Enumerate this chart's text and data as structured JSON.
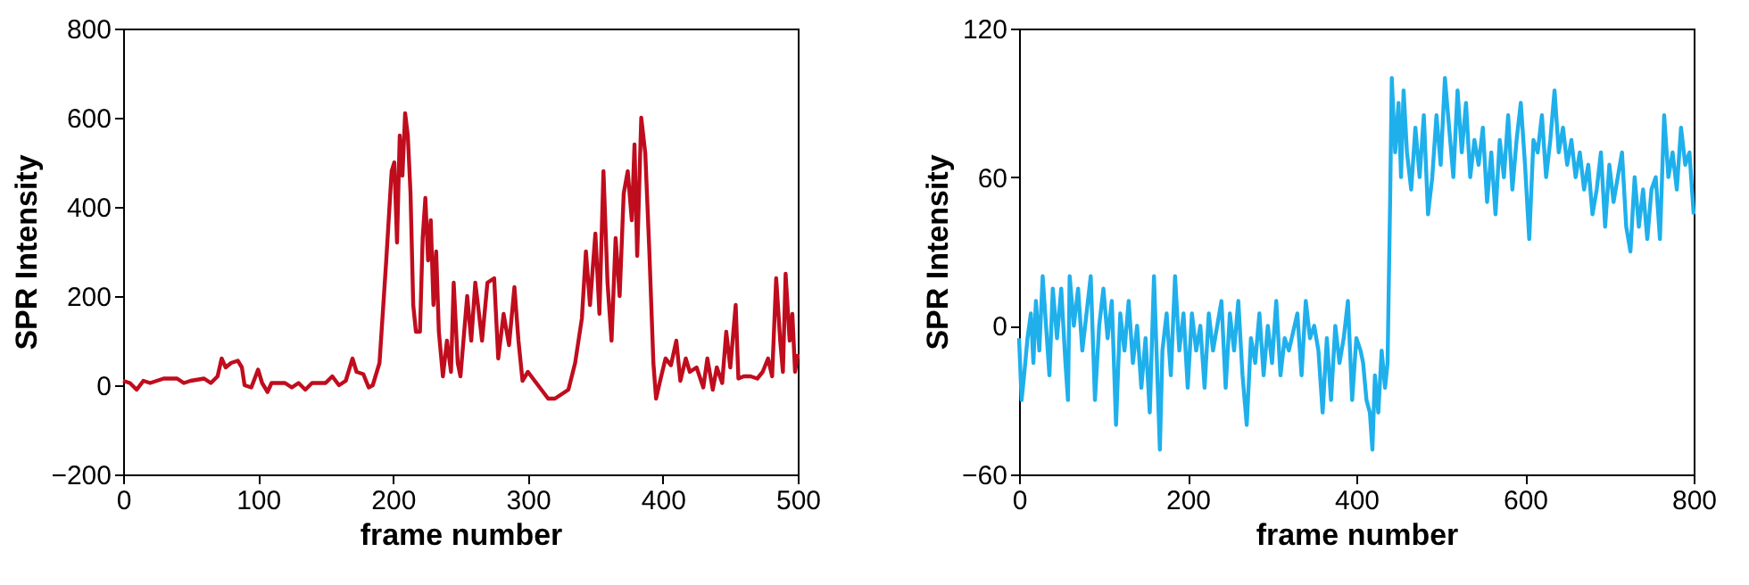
{
  "chart_data": [
    {
      "type": "line",
      "xlabel": "frame number",
      "ylabel": "SPR Intensity",
      "xlim": [
        0,
        500
      ],
      "xticks": [
        0,
        100,
        200,
        300,
        400,
        500
      ],
      "ylim": [
        -200,
        800
      ],
      "yticks": [
        -200,
        0,
        200,
        400,
        600,
        800
      ],
      "grid": false,
      "marker": "none",
      "line_style": "solid",
      "series": [
        {
          "color": "#c00d1e",
          "x": [
            0,
            5,
            10,
            15,
            20,
            30,
            40,
            45,
            50,
            60,
            65,
            70,
            73,
            76,
            80,
            85,
            88,
            90,
            95,
            100,
            103,
            107,
            110,
            120,
            125,
            130,
            135,
            140,
            150,
            155,
            160,
            165,
            170,
            173,
            178,
            182,
            185,
            190,
            195,
            199,
            201,
            203,
            205,
            207,
            209,
            211,
            213,
            215,
            217,
            220,
            222,
            224,
            226,
            228,
            230,
            232,
            234,
            237,
            240,
            243,
            245,
            248,
            250,
            255,
            258,
            261,
            263,
            266,
            270,
            275,
            278,
            282,
            286,
            290,
            293,
            296,
            300,
            305,
            310,
            315,
            320,
            325,
            330,
            335,
            340,
            343,
            346,
            350,
            353,
            356,
            359,
            362,
            365,
            368,
            371,
            374,
            377,
            379,
            381,
            384,
            387,
            390,
            393,
            395,
            398,
            402,
            406,
            410,
            413,
            417,
            420,
            425,
            430,
            433,
            437,
            440,
            444,
            447,
            450,
            454,
            456,
            460,
            465,
            470,
            474,
            478,
            481,
            484,
            487,
            489,
            491,
            494,
            496,
            498,
            500
          ],
          "values": [
            10,
            5,
            -10,
            10,
            5,
            15,
            15,
            5,
            10,
            15,
            5,
            20,
            60,
            40,
            50,
            55,
            40,
            0,
            -5,
            35,
            5,
            -15,
            5,
            5,
            -5,
            5,
            -10,
            5,
            5,
            20,
            0,
            10,
            60,
            30,
            25,
            -5,
            0,
            50,
            280,
            480,
            500,
            320,
            560,
            470,
            610,
            560,
            430,
            180,
            120,
            120,
            330,
            420,
            280,
            370,
            180,
            300,
            120,
            20,
            100,
            30,
            230,
            50,
            20,
            200,
            100,
            230,
            180,
            100,
            230,
            240,
            60,
            160,
            90,
            220,
            100,
            10,
            30,
            10,
            -10,
            -30,
            -30,
            -20,
            -10,
            50,
            150,
            300,
            180,
            340,
            160,
            480,
            230,
            100,
            330,
            200,
            430,
            480,
            370,
            540,
            290,
            600,
            520,
            300,
            50,
            -30,
            10,
            60,
            45,
            100,
            10,
            60,
            30,
            40,
            -5,
            60,
            -10,
            40,
            5,
            120,
            40,
            180,
            15,
            20,
            20,
            15,
            30,
            60,
            20,
            240,
            100,
            30,
            250,
            100,
            160,
            30,
            70
          ]
        }
      ]
    },
    {
      "type": "line",
      "xlabel": "frame number",
      "ylabel": "SPR Intensity",
      "xlim": [
        0,
        800
      ],
      "xticks": [
        0,
        200,
        400,
        600,
        800
      ],
      "ylim": [
        -60,
        120
      ],
      "yticks": [
        -60,
        0,
        60,
        120
      ],
      "grid": false,
      "marker": "none",
      "line_style": "solid",
      "series": [
        {
          "color": "#1fb0ec",
          "x": [
            0,
            3,
            6,
            10,
            14,
            17,
            20,
            24,
            28,
            32,
            36,
            40,
            45,
            50,
            55,
            58,
            60,
            65,
            70,
            75,
            80,
            85,
            90,
            95,
            100,
            105,
            110,
            115,
            120,
            125,
            130,
            135,
            140,
            145,
            150,
            155,
            160,
            163,
            167,
            170,
            175,
            180,
            185,
            190,
            195,
            200,
            205,
            210,
            215,
            220,
            225,
            230,
            240,
            245,
            250,
            255,
            260,
            265,
            270,
            275,
            280,
            285,
            290,
            295,
            300,
            305,
            310,
            315,
            320,
            330,
            335,
            340,
            345,
            350,
            355,
            360,
            365,
            370,
            375,
            380,
            385,
            390,
            395,
            400,
            405,
            408,
            412,
            416,
            419,
            422,
            426,
            430,
            434,
            437,
            440,
            442,
            446,
            450,
            453,
            456,
            460,
            465,
            470,
            475,
            480,
            485,
            490,
            495,
            500,
            505,
            510,
            515,
            520,
            525,
            530,
            535,
            540,
            545,
            550,
            555,
            560,
            565,
            570,
            575,
            580,
            585,
            590,
            595,
            600,
            605,
            610,
            615,
            620,
            625,
            630,
            635,
            640,
            645,
            650,
            655,
            660,
            665,
            670,
            675,
            680,
            685,
            690,
            695,
            700,
            705,
            710,
            715,
            720,
            725,
            730,
            735,
            740,
            745,
            750,
            755,
            760,
            765,
            770,
            775,
            780,
            785,
            790,
            795,
            800
          ],
          "values": [
            -5,
            -30,
            -20,
            -5,
            5,
            -15,
            10,
            -10,
            20,
            0,
            -20,
            15,
            -5,
            15,
            -15,
            -30,
            20,
            0,
            15,
            -10,
            5,
            20,
            -30,
            0,
            15,
            -5,
            10,
            -40,
            5,
            -10,
            10,
            -15,
            0,
            -25,
            -5,
            -35,
            20,
            -10,
            -50,
            -10,
            5,
            -20,
            20,
            -10,
            5,
            -25,
            5,
            -10,
            0,
            -25,
            5,
            -10,
            10,
            -25,
            5,
            -10,
            10,
            -20,
            -40,
            -5,
            -15,
            5,
            -20,
            0,
            -15,
            10,
            -20,
            -5,
            -10,
            5,
            -20,
            10,
            -5,
            0,
            -10,
            -35,
            -5,
            -30,
            0,
            -15,
            -5,
            10,
            -30,
            -5,
            -10,
            -15,
            -30,
            -35,
            -50,
            -20,
            -35,
            -10,
            -25,
            -15,
            50,
            100,
            70,
            90,
            60,
            95,
            70,
            55,
            80,
            60,
            85,
            45,
            60,
            85,
            65,
            100,
            80,
            60,
            95,
            70,
            90,
            60,
            75,
            65,
            80,
            50,
            70,
            45,
            75,
            60,
            85,
            55,
            75,
            90,
            65,
            35,
            75,
            70,
            85,
            60,
            75,
            95,
            70,
            80,
            65,
            75,
            60,
            70,
            55,
            65,
            45,
            55,
            70,
            40,
            65,
            50,
            60,
            70,
            40,
            30,
            60,
            40,
            55,
            35,
            55,
            60,
            35,
            85,
            60,
            70,
            55,
            80,
            65,
            70,
            45
          ]
        }
      ]
    }
  ]
}
